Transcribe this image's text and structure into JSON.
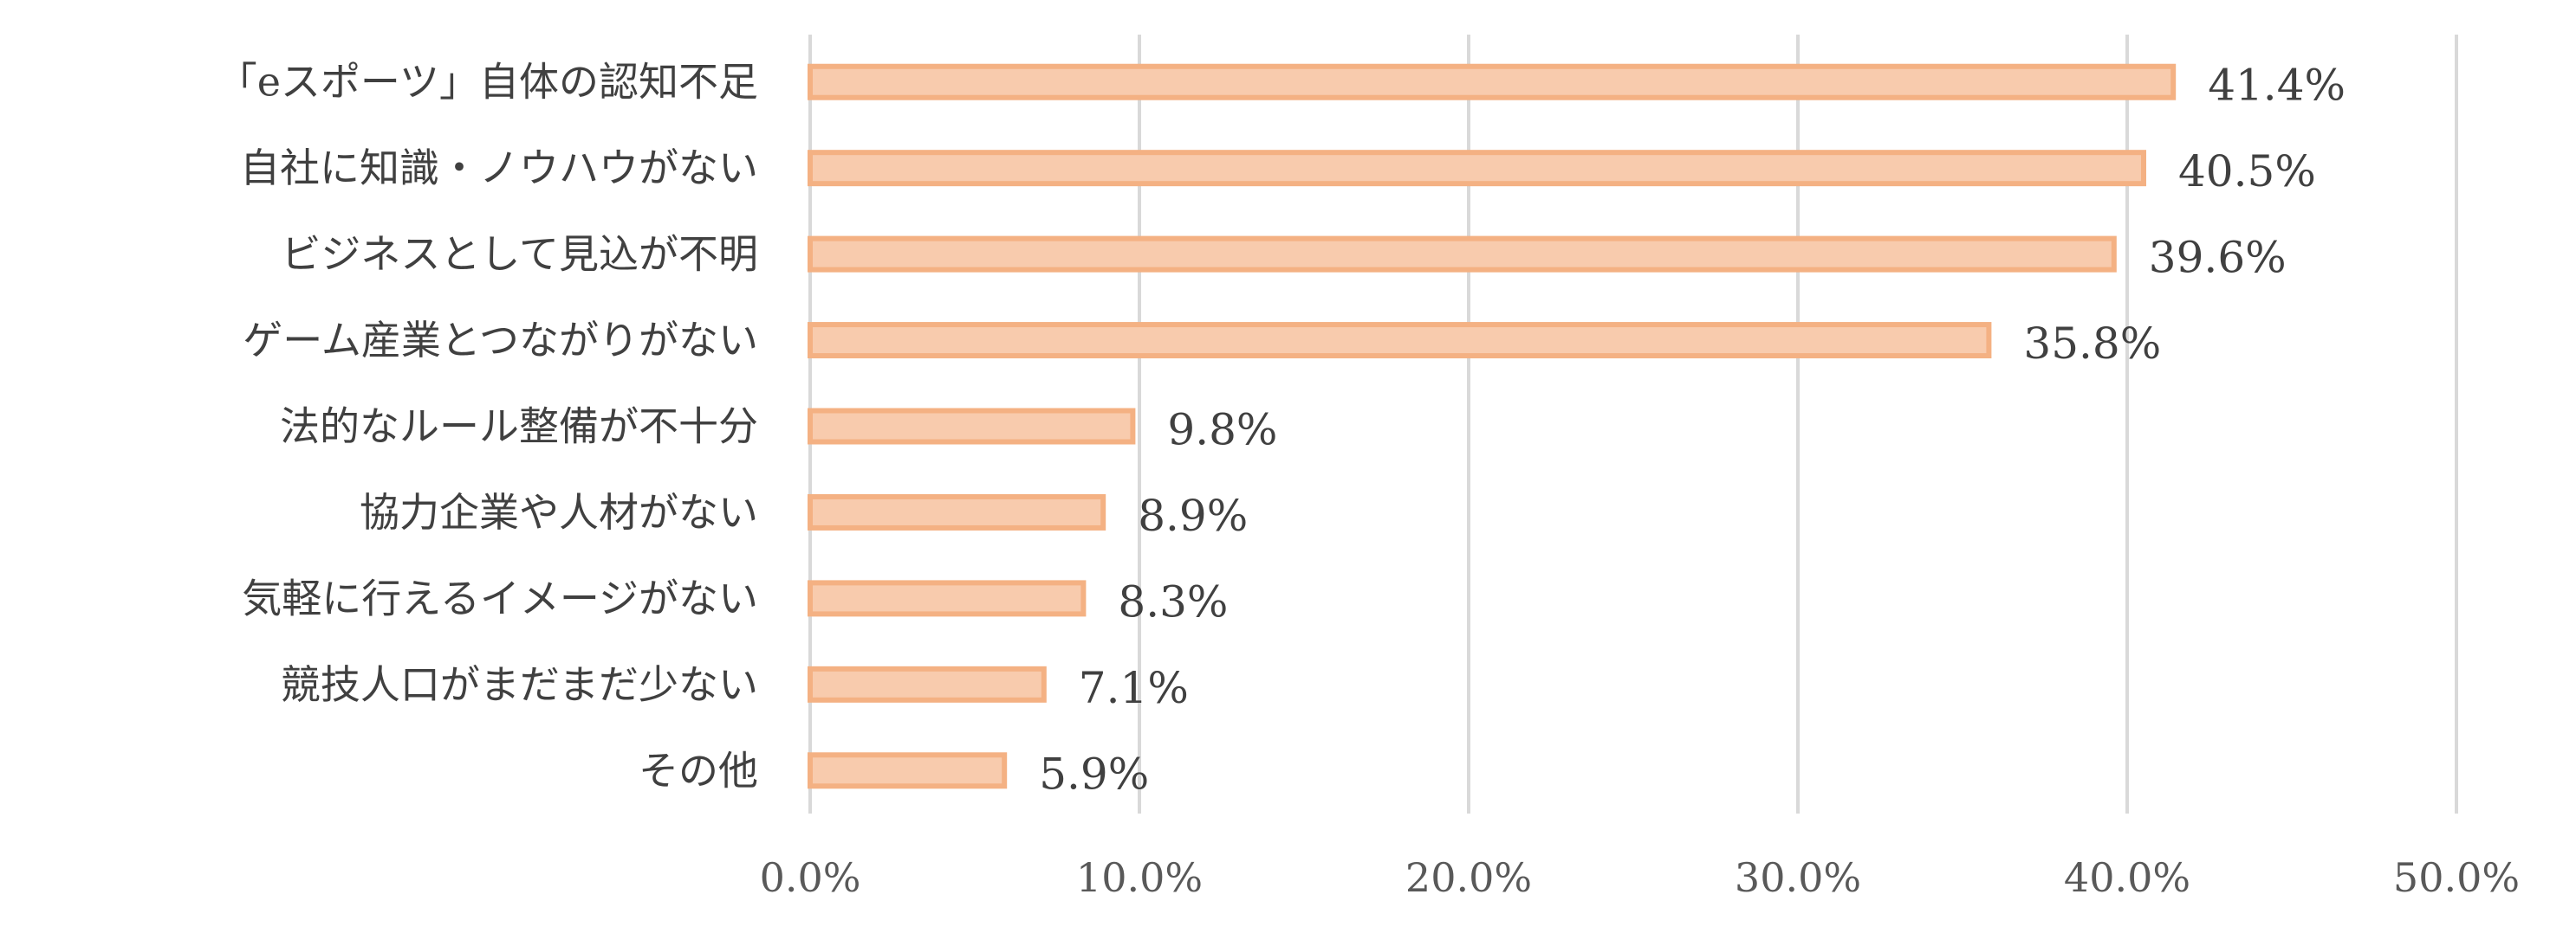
{
  "chart_data": {
    "type": "bar",
    "orientation": "horizontal",
    "categories": [
      "「eスポーツ」自体の認知不足",
      "自社に知識・ノウハウがない",
      "ビジネスとして見込が不明",
      "ゲーム産業とつながりがない",
      "法的なルール整備が不十分",
      "協力企業や人材がない",
      "気軽に行えるイメージがない",
      "競技人口がまだまだ少ない",
      "その他"
    ],
    "values": [
      41.4,
      40.5,
      39.6,
      35.8,
      9.8,
      8.9,
      8.3,
      7.1,
      5.9
    ],
    "data_labels": [
      "41.4%",
      "40.5%",
      "39.6%",
      "35.8%",
      "9.8%",
      "8.9%",
      "8.3%",
      "7.1%",
      "5.9%"
    ],
    "x_ticks": [
      0,
      10,
      20,
      30,
      40,
      50
    ],
    "x_tick_labels": [
      "0.0%",
      "10.0%",
      "20.0%",
      "30.0%",
      "40.0%",
      "50.0%"
    ],
    "xlim": [
      0,
      50
    ],
    "grid": true,
    "legend": "none",
    "title": "",
    "xlabel": "",
    "ylabel": "",
    "colors": {
      "bar_fill": "#F8CBAD",
      "bar_stroke": "#F4B183",
      "grid": "#D9D9D9"
    }
  }
}
